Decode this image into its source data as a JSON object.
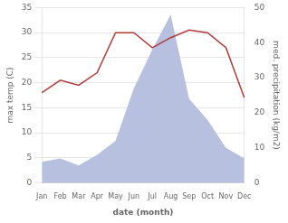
{
  "chart_data": {
    "type": "line",
    "categories": [
      "Jan",
      "Feb",
      "Mar",
      "Apr",
      "May",
      "Jun",
      "Jul",
      "Aug",
      "Sep",
      "Oct",
      "Nov",
      "Dec"
    ],
    "series": [
      {
        "type": "area",
        "color": "#b8c0e0",
        "axis": "y2",
        "values": [
          6,
          7,
          5,
          8,
          12,
          27,
          38,
          48,
          24,
          18,
          10,
          7
        ]
      },
      {
        "type": "line",
        "color": "#b03a3a",
        "values": [
          18,
          20.5,
          19.5,
          22,
          30,
          30,
          27,
          29,
          30.5,
          30,
          27,
          17
        ]
      }
    ],
    "xlabel": "date (month)",
    "ylabel": "max temp (C)",
    "y2label": "med. precipitation (kg/m2)",
    "ylim": [
      0,
      35
    ],
    "yticks": [
      0,
      5,
      10,
      15,
      20,
      25,
      30,
      35
    ],
    "y2lim": [
      0,
      50
    ],
    "y2ticks": [
      0,
      10,
      20,
      30,
      40,
      50
    ],
    "grid": true
  }
}
